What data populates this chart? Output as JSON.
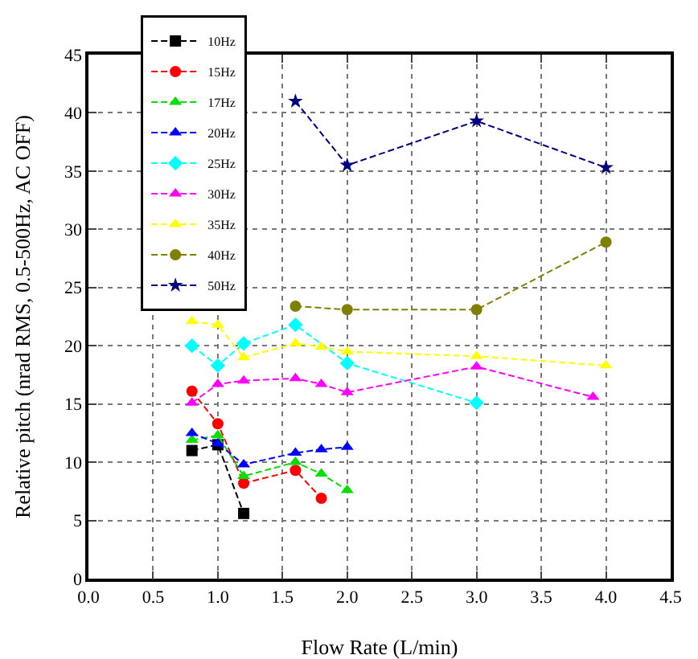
{
  "chart_data": {
    "type": "line",
    "xlabel": "Flow Rate (L/min)",
    "ylabel": "Relative pitch (nrad RMS, 0.5-500Hz, AC OFF)",
    "xlim": [
      0,
      4.5
    ],
    "xticks": [
      {
        "value": 0,
        "label": "0.0"
      },
      {
        "value": 0.5,
        "label": "0.5"
      },
      {
        "value": 1,
        "label": "1.0"
      },
      {
        "value": 1.5,
        "label": "1.5"
      },
      {
        "value": 2,
        "label": "2.0"
      },
      {
        "value": 2.5,
        "label": "2.5"
      },
      {
        "value": 3,
        "label": "3.0"
      },
      {
        "value": 3.5,
        "label": "3.5"
      },
      {
        "value": 4,
        "label": "4.0"
      },
      {
        "value": 4.5,
        "label": "4.5"
      }
    ],
    "ylim": [
      0,
      45
    ],
    "yticks": [
      0,
      5,
      10,
      15,
      20,
      25,
      30,
      35,
      40,
      45
    ],
    "grid": true,
    "legend": "top left",
    "line_style": "dashed",
    "series": [
      {
        "name": "10Hz",
        "color": "#000000",
        "marker": "square",
        "x": [
          0.8,
          1.0,
          1.2
        ],
        "values": [
          11.0,
          11.5,
          5.6
        ]
      },
      {
        "name": "15Hz",
        "color": "#ff0000",
        "marker": "circle",
        "x": [
          0.8,
          1.0,
          1.2,
          1.6,
          1.8
        ],
        "values": [
          16.1,
          13.3,
          8.2,
          9.3,
          6.9
        ]
      },
      {
        "name": "17Hz",
        "color": "#00e000",
        "marker": "triangle",
        "x": [
          0.8,
          1.0,
          1.2,
          1.6,
          1.8,
          2.0
        ],
        "values": [
          11.9,
          12.3,
          8.8,
          10.0,
          9.0,
          7.6
        ]
      },
      {
        "name": "20Hz",
        "color": "#0000ff",
        "marker": "triangle",
        "x": [
          0.8,
          1.0,
          1.2,
          1.6,
          1.8,
          2.0
        ],
        "values": [
          12.5,
          11.6,
          9.8,
          10.8,
          11.1,
          11.3
        ]
      },
      {
        "name": "25Hz",
        "color": "#00ffff",
        "marker": "diamond",
        "x": [
          0.8,
          1.0,
          1.2,
          1.6,
          2.0,
          3.0
        ],
        "values": [
          20.0,
          18.3,
          20.2,
          21.8,
          18.5,
          15.1
        ]
      },
      {
        "name": "30Hz",
        "color": "#ff00ff",
        "marker": "triangle",
        "x": [
          0.8,
          1.0,
          1.2,
          1.6,
          1.8,
          2.0,
          3.0,
          3.9
        ],
        "values": [
          15.1,
          16.7,
          17.0,
          17.2,
          16.7,
          16.0,
          18.2,
          15.6
        ]
      },
      {
        "name": "35Hz",
        "color": "#ffff00",
        "marker": "triangle",
        "x": [
          0.8,
          1.0,
          1.2,
          1.6,
          1.8,
          2.0,
          3.0,
          4.0
        ],
        "values": [
          22.1,
          21.8,
          19.0,
          20.2,
          19.9,
          19.5,
          19.1,
          18.3
        ]
      },
      {
        "name": "40Hz",
        "color": "#808000",
        "marker": "circle",
        "x": [
          1.6,
          2.0,
          3.0,
          4.0
        ],
        "values": [
          23.4,
          23.1,
          23.1,
          28.9
        ]
      },
      {
        "name": "50Hz",
        "color": "#000080",
        "marker": "star",
        "x": [
          1.6,
          2.0,
          3.0,
          4.0
        ],
        "values": [
          41.0,
          35.5,
          39.3,
          35.3
        ]
      }
    ]
  }
}
